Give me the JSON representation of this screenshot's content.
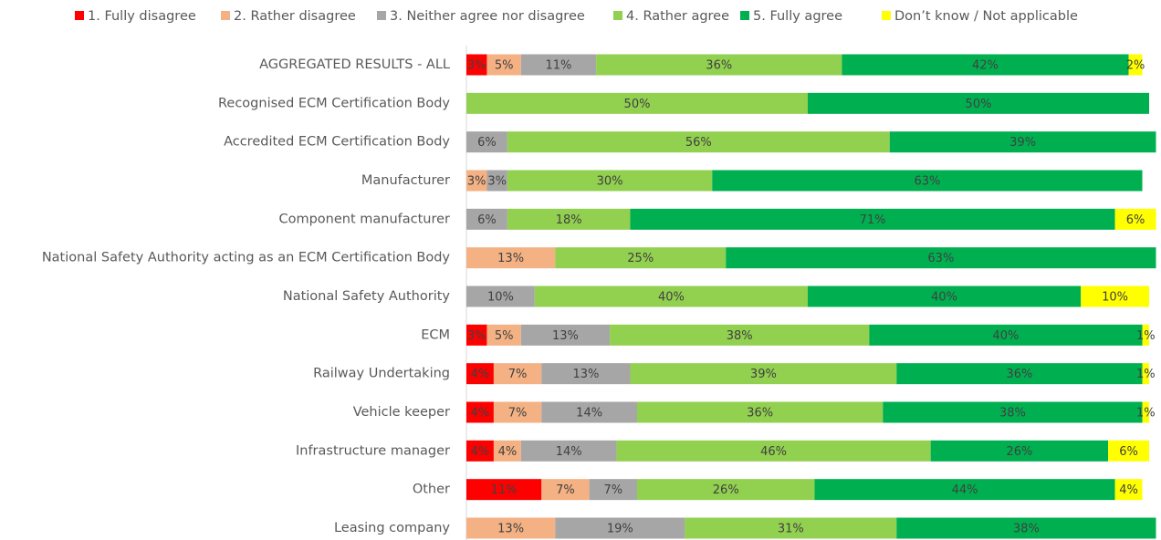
{
  "chart_data": {
    "type": "stacked-bar-horizontal",
    "categories": [
      "AGGREGATED RESULTS - ALL",
      "Recognised ECM Certification Body",
      "Accredited ECM Certification Body",
      "Manufacturer",
      "Component manufacturer",
      "National Safety Authority acting as an ECM Certification Body",
      "National Safety Authority",
      "ECM",
      "Railway Undertaking",
      "Vehicle keeper",
      "Infrastructure manager",
      "Other",
      "Leasing company"
    ],
    "xlim": [
      0,
      100
    ],
    "legend": "top",
    "series": [
      {
        "name": "1. Fully disagree",
        "color": "#ff0000",
        "values": [
          3,
          null,
          null,
          null,
          null,
          null,
          null,
          3,
          4,
          4,
          4,
          11,
          null
        ],
        "value_labels": [
          "3%",
          null,
          null,
          null,
          null,
          null,
          null,
          "3%",
          "4%",
          "4%",
          "4%",
          "11%",
          null
        ]
      },
      {
        "name": "2. Rather disagree",
        "color": "#f4b183",
        "values": [
          5,
          null,
          null,
          3,
          null,
          13,
          null,
          5,
          7,
          7,
          4,
          7,
          13
        ],
        "value_labels": [
          "5%",
          null,
          null,
          "3%",
          null,
          "13%",
          null,
          "5%",
          "7%",
          "7%",
          "4%",
          "7%",
          "13%"
        ]
      },
      {
        "name": "3. Neither agree nor disagree",
        "color": "#a6a6a6",
        "values": [
          11,
          null,
          6,
          3,
          6,
          null,
          10,
          13,
          13,
          14,
          14,
          7,
          19
        ],
        "value_labels": [
          "11%",
          null,
          "6%",
          "3%",
          "6%",
          null,
          "10%",
          "13%",
          "13%",
          "14%",
          "14%",
          "7%",
          "19%"
        ]
      },
      {
        "name": "4. Rather agree",
        "color": "#92d050",
        "values": [
          36,
          50,
          56,
          30,
          18,
          25,
          40,
          38,
          39,
          36,
          46,
          26,
          31
        ],
        "value_labels": [
          "36%",
          "50%",
          "56%",
          "30%",
          "18%",
          "25%",
          "40%",
          "38%",
          "39%",
          "36%",
          "46%",
          "26%",
          "31%"
        ]
      },
      {
        "name": "5. Fully agree",
        "color": "#00b050",
        "values": [
          42,
          50,
          39,
          63,
          71,
          63,
          40,
          40,
          36,
          38,
          26,
          44,
          38
        ],
        "value_labels": [
          "42%",
          "50%",
          "39%",
          "63%",
          "71%",
          "63%",
          "40%",
          "40%",
          "36%",
          "38%",
          "26%",
          "44%",
          "38%"
        ]
      },
      {
        "name": "Don’t know / Not applicable",
        "color": "#ffff00",
        "values": [
          2,
          null,
          null,
          null,
          6,
          null,
          10,
          1,
          1,
          1,
          6,
          4,
          null
        ],
        "value_labels": [
          "2%",
          null,
          null,
          null,
          "6%",
          null,
          "10%",
          "1%",
          "1%",
          "1%",
          "6%",
          "4%",
          null
        ]
      }
    ]
  }
}
